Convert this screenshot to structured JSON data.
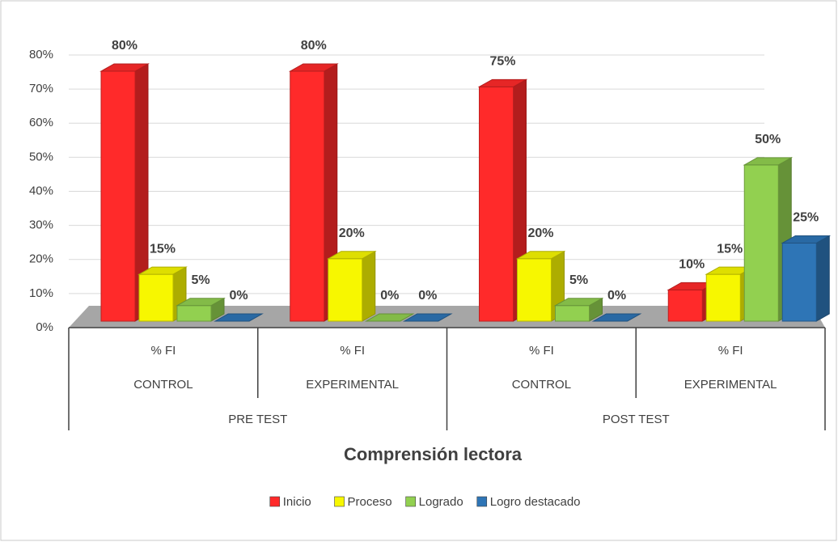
{
  "chart_data": {
    "type": "bar3d",
    "x_label": "Comprensión lectora",
    "categories": [
      "% FI",
      "% FI",
      "% FI",
      "% FI"
    ],
    "category_groups": [
      "CONTROL",
      "EXPERIMENTAL",
      "CONTROL",
      "EXPERIMENTAL"
    ],
    "supergroups": [
      "PRE TEST",
      "POST TEST"
    ],
    "series": [
      {
        "name": "Inicio",
        "color": "#ff2a2a",
        "values": [
          80,
          80,
          75,
          10
        ],
        "value_labels": [
          "80%",
          "80%",
          "75%",
          "10%"
        ]
      },
      {
        "name": "Proceso",
        "color": "#f7f700",
        "values": [
          15,
          20,
          20,
          15
        ],
        "value_labels": [
          "15%",
          "20%",
          "20%",
          "15%"
        ]
      },
      {
        "name": "Logrado",
        "color": "#92d050",
        "values": [
          5,
          0,
          5,
          50
        ],
        "value_labels": [
          "5%",
          "0%",
          "5%",
          "50%"
        ]
      },
      {
        "name": "Logro destacado",
        "color": "#2e75b6",
        "values": [
          0,
          0,
          0,
          25
        ],
        "value_labels": [
          "0%",
          "0%",
          "0%",
          "25%"
        ]
      }
    ],
    "ylim": [
      0,
      80
    ],
    "yticks": [
      {
        "value": 0,
        "label": "0%"
      },
      {
        "value": 10,
        "label": "10%"
      },
      {
        "value": 20,
        "label": "20%"
      },
      {
        "value": 30,
        "label": "30%"
      },
      {
        "value": 40,
        "label": "40%"
      },
      {
        "value": 50,
        "label": "50%"
      },
      {
        "value": 60,
        "label": "60%"
      },
      {
        "value": 70,
        "label": "70%"
      },
      {
        "value": 80,
        "label": "80%"
      }
    ],
    "grid": true
  }
}
